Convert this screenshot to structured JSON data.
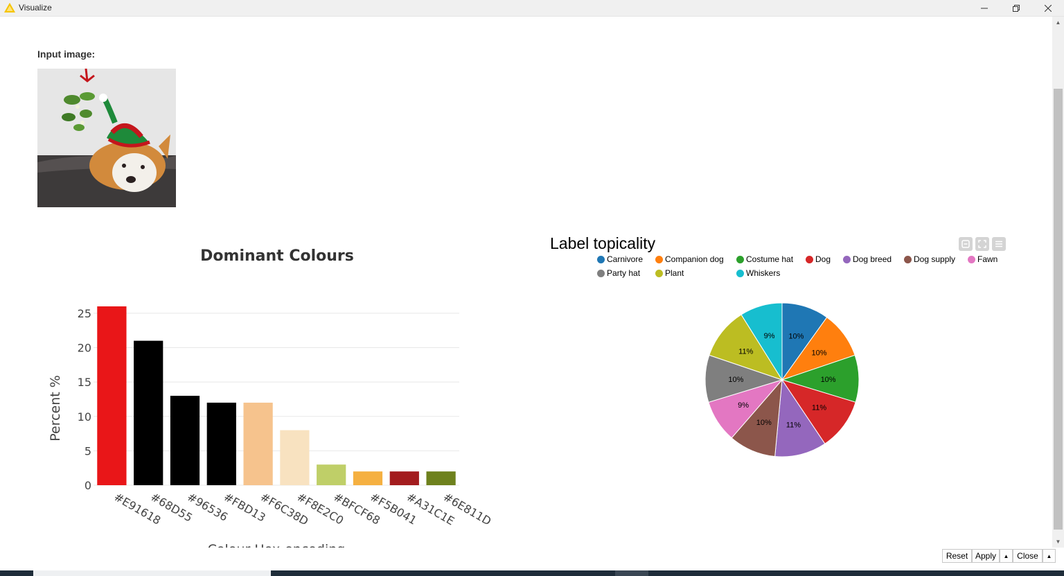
{
  "window": {
    "title": "Visualize"
  },
  "input_image": {
    "label": "Input image:"
  },
  "colors": {
    "carnivore": "#1f77b4",
    "companion_dog": "#ff7f0e",
    "costume_hat": "#2ca02c",
    "dog": "#d62728",
    "dog_breed": "#9467bd",
    "dog_supply": "#8c564b",
    "fawn": "#e377c2",
    "party_hat": "#7f7f7f",
    "plant": "#bcbd22",
    "whiskers": "#17becf"
  },
  "chart_data": [
    {
      "type": "bar",
      "title": "Dominant Colours",
      "xlabel": "Colour Hex-encoding",
      "ylabel": "Percent %",
      "categories": [
        "#E91618",
        "#68D55",
        "#96536",
        "#FBD13",
        "#F6C38D",
        "#F8E2C0",
        "#BFCF68",
        "#F5B041",
        "#A31C1E",
        "#6E811D"
      ],
      "values": [
        26,
        21,
        13,
        12,
        12,
        8,
        3,
        2,
        2,
        2
      ],
      "bar_colors": [
        "#E91618",
        "#000000",
        "#000000",
        "#000000",
        "#F6C38D",
        "#F8E2C0",
        "#BFCF68",
        "#F5B041",
        "#A31C1E",
        "#6E811D"
      ],
      "ylim": [
        0,
        26
      ],
      "yticks": [
        "0",
        "5",
        "10",
        "15",
        "20",
        "25"
      ],
      "grid": true
    },
    {
      "type": "pie",
      "title": "Label topicality",
      "legend": "top",
      "labels": [
        "Carnivore",
        "Companion dog",
        "Costume hat",
        "Dog",
        "Dog breed",
        "Dog supply",
        "Fawn",
        "Party hat",
        "Plant",
        "Whiskers"
      ],
      "values": [
        10,
        10,
        10,
        11,
        11,
        10,
        9,
        10,
        11,
        9
      ],
      "value_labels": [
        "10%",
        "10%",
        "10%",
        "11%",
        "11%",
        "10%",
        "9%",
        "10%",
        "11%",
        "9%"
      ],
      "colors": [
        "#1f77b4",
        "#ff7f0e",
        "#2ca02c",
        "#d62728",
        "#9467bd",
        "#8c564b",
        "#e377c2",
        "#7f7f7f",
        "#bcbd22",
        "#17becf"
      ]
    }
  ],
  "buttons": {
    "reset": "Reset",
    "apply": "Apply",
    "close": "Close"
  }
}
